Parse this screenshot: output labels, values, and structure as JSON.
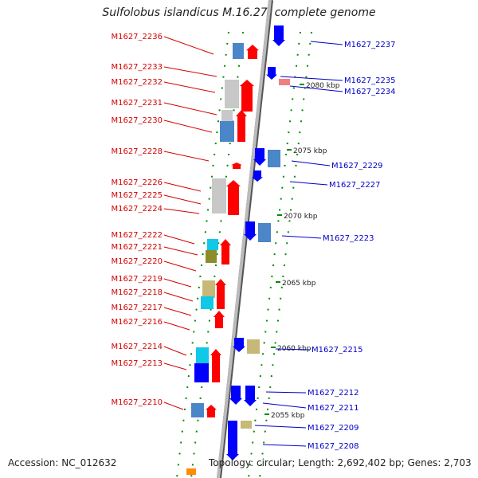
{
  "title": "Sulfolobus islandicus M.16.27, complete genome",
  "accession": "Accession: NC_012632",
  "topology": "Topology: circular; Length: 2,692,402 bp; Genes: 2,703",
  "colors": {
    "left_label": "#d40000",
    "right_label": "#0000c8",
    "red": "#ff0000",
    "blue": "#0000ff",
    "grey": "#c8c8c8",
    "steelblue": "#4a86c8",
    "cyan": "#10c8e8",
    "olive": "#8c8c28",
    "khaki": "#c8b878",
    "salmon": "#f08080",
    "orange": "#ff8c00",
    "dot_green": "#008c00",
    "backbone": "#999999"
  },
  "scale": {
    "labels": [
      "2080 kbp",
      "2075 kbp",
      "2070 kbp",
      "2065 kbp",
      "2060 kbp",
      "2055 kbp"
    ],
    "kbp": [
      2080,
      2075,
      2070,
      2065,
      2060,
      2055
    ]
  },
  "left_labels": [
    "M1627_2236",
    "M1627_2233",
    "M1627_2232",
    "M1627_2231",
    "M1627_2230",
    "M1627_2228",
    "M1627_2226",
    "M1627_2225",
    "M1627_2224",
    "M1627_2222",
    "M1627_2221",
    "M1627_2220",
    "M1627_2219",
    "M1627_2218",
    "M1627_2217",
    "M1627_2216",
    "M1627_2214",
    "M1627_2213",
    "M1627_2210"
  ],
  "right_labels": [
    "M1627_2237",
    "M1627_2235",
    "M1627_2234",
    "M1627_2229",
    "M1627_2227",
    "M1627_2223",
    "M1627_2215",
    "M1627_2212",
    "M1627_2211",
    "M1627_2209",
    "M1627_2208"
  ]
}
